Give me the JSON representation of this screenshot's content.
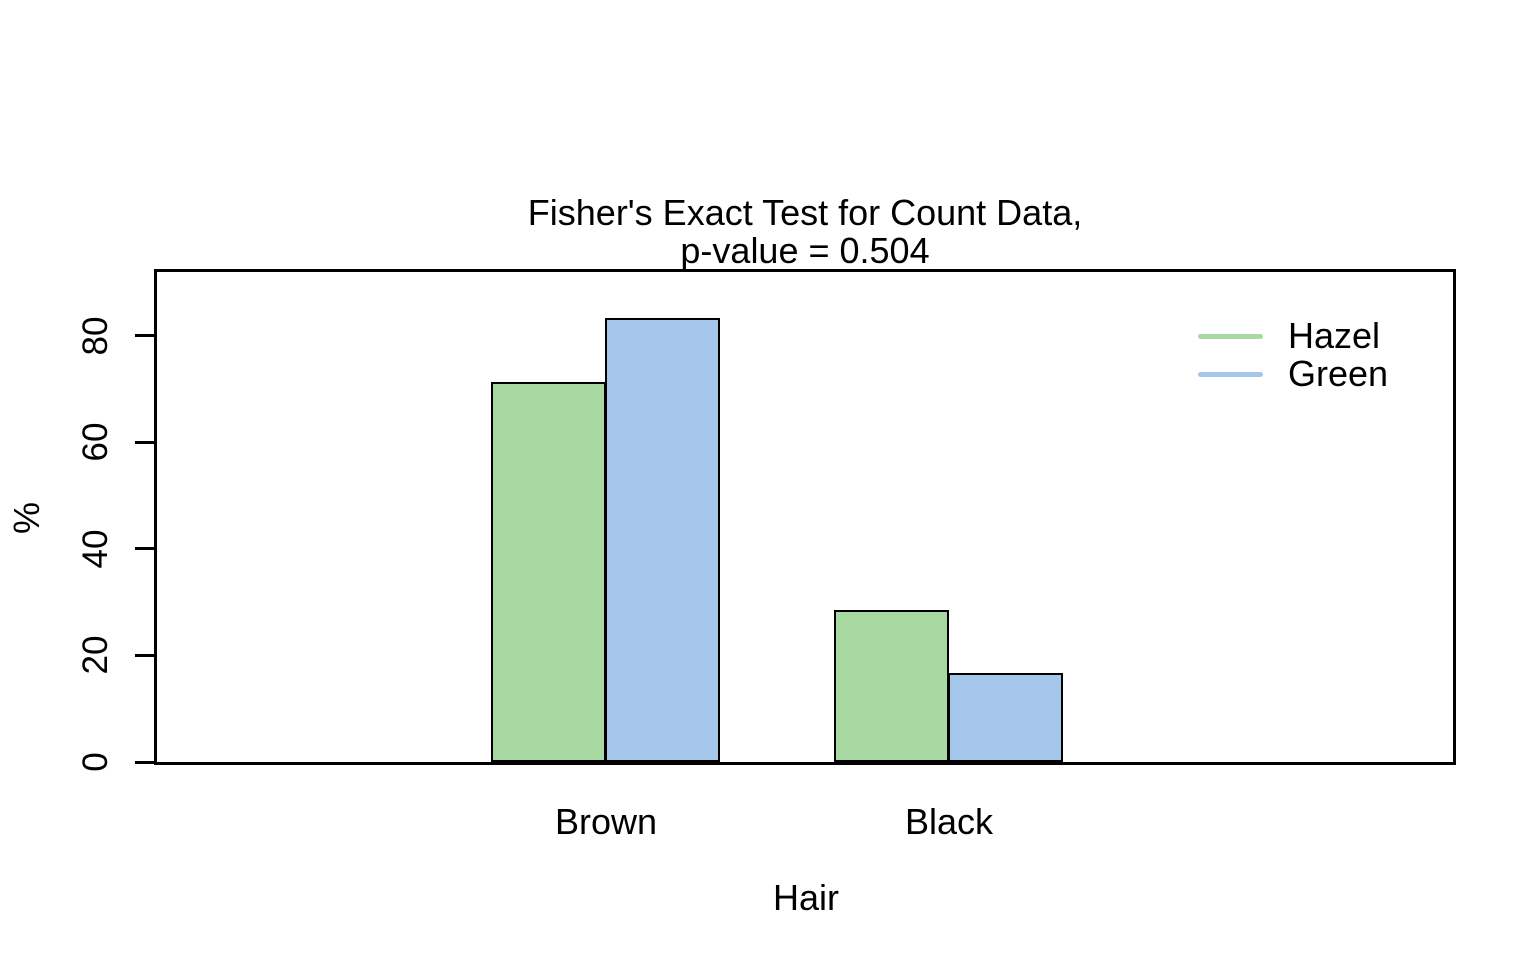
{
  "title": {
    "line1": "Fisher's Exact Test for Count Data,",
    "line2": "p-value = 0.504"
  },
  "y_axis": {
    "label": "%",
    "ticks": [
      0,
      20,
      40,
      60,
      80
    ],
    "max": 92
  },
  "x_axis": {
    "label": "Hair",
    "categories": [
      "Brown",
      "Black"
    ]
  },
  "legend": {
    "items": [
      {
        "label": "Hazel",
        "color": "#a9d9a3"
      },
      {
        "label": "Green",
        "color": "#a3c6ea"
      }
    ]
  },
  "chart_data": {
    "type": "bar",
    "title": "Fisher's Exact Test for Count Data, p-value = 0.504",
    "categories": [
      "Brown",
      "Black"
    ],
    "series": [
      {
        "name": "Hazel",
        "color": "#a9d9a3",
        "values": [
          71.4,
          28.6
        ]
      },
      {
        "name": "Green",
        "color": "#a3c6ea",
        "values": [
          83.3,
          16.7
        ]
      }
    ],
    "xlabel": "Hair",
    "ylabel": "%",
    "ylim": [
      0,
      92
    ],
    "yticks": [
      0,
      20,
      40,
      60,
      80
    ],
    "bar_border_color": "#000000",
    "legend_position": "top-right",
    "grid": false
  }
}
